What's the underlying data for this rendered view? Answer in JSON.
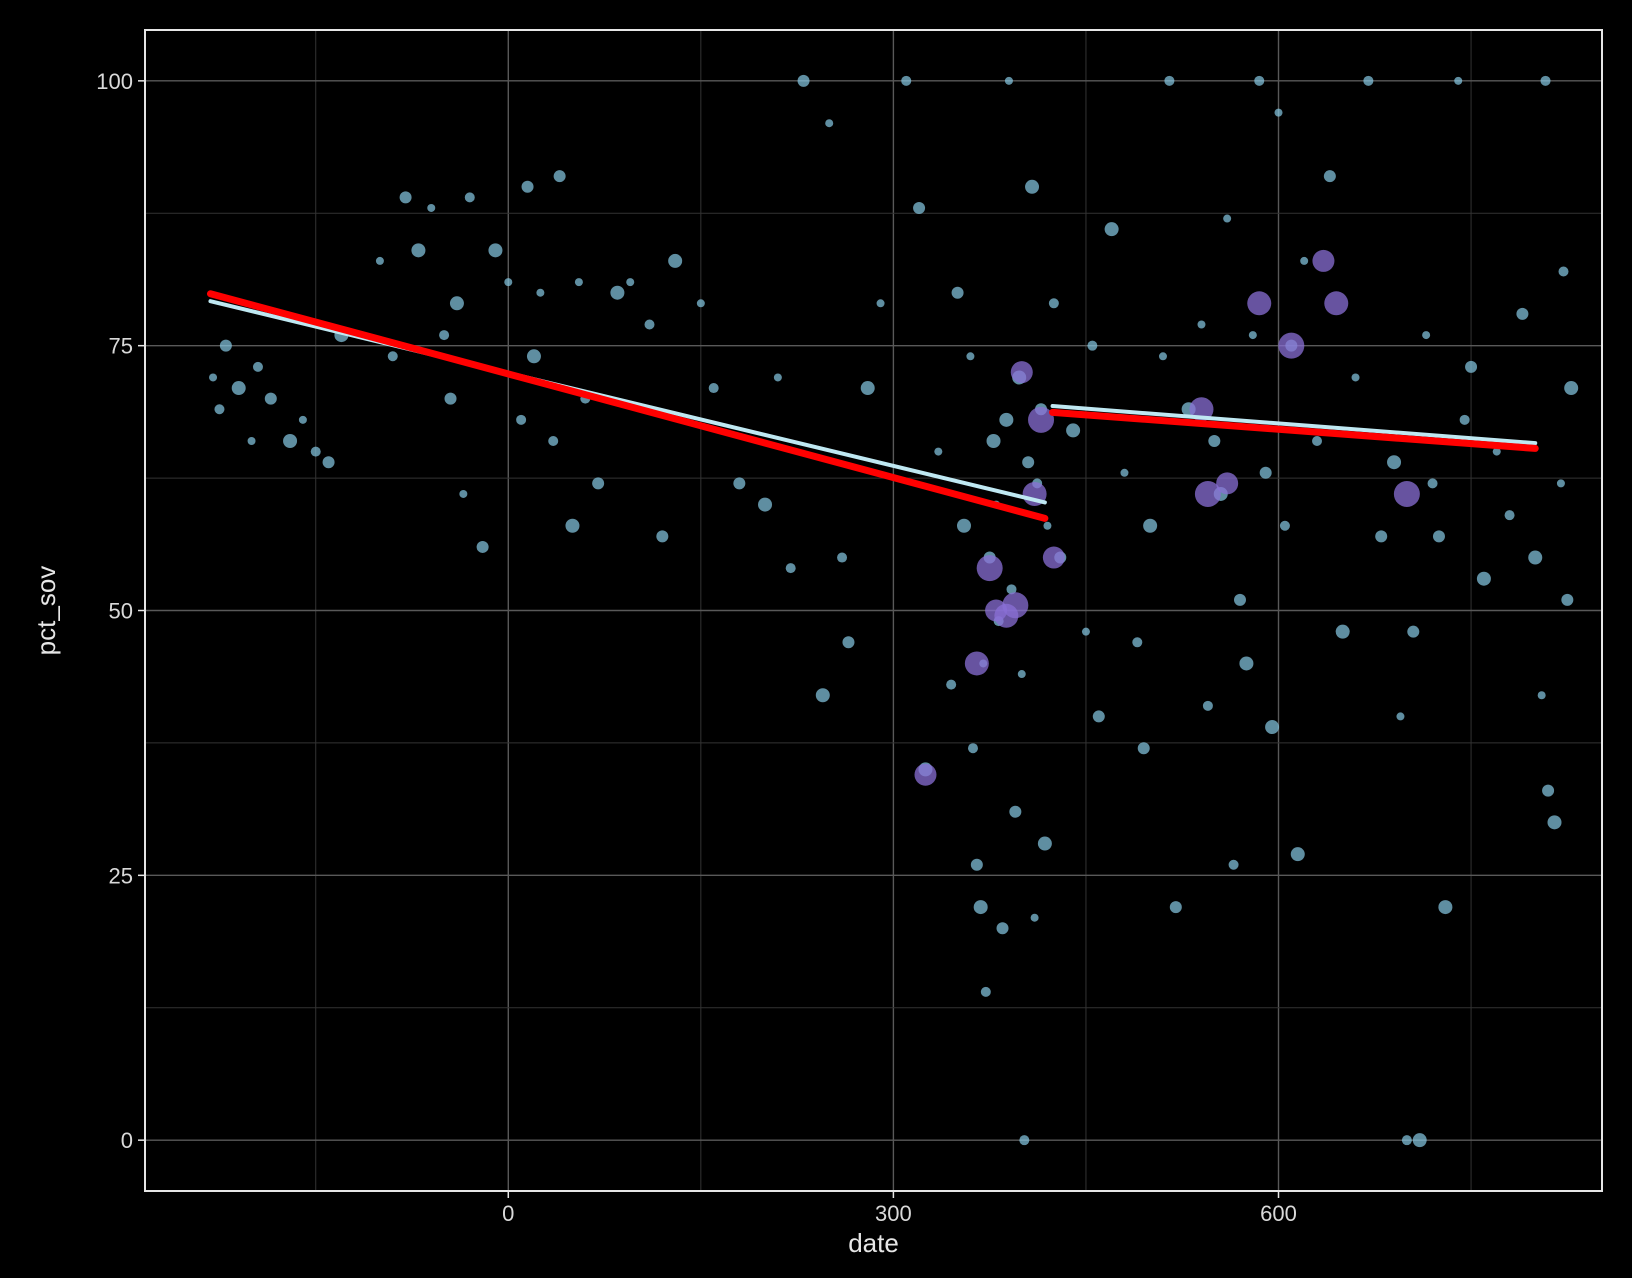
{
  "chart_data": {
    "type": "scatter",
    "title": "",
    "xlabel": "date",
    "ylabel": "pct_sov",
    "xlim": [
      -283,
      852
    ],
    "ylim": [
      -4.8,
      104.8
    ],
    "x_ticks": [
      0,
      300,
      600
    ],
    "x_tick_labels": [
      "0",
      "300",
      "600"
    ],
    "y_ticks": [
      0,
      25,
      50,
      75,
      100
    ],
    "y_tick_labels": [
      "0",
      "25",
      "50",
      "75",
      "100"
    ],
    "grid": true,
    "legend": "none",
    "colors": {
      "background": "#000000",
      "panel_border": "#e6e6e6",
      "grid_major": "#595959",
      "grid_minor": "#333333",
      "point": "#87cbe6",
      "point_large": "#8a6fd6",
      "trend_fit": "#ff0000",
      "trend_alt": "#bfe8f2"
    },
    "points_sample": [
      {
        "x": -230,
        "y": 72
      },
      {
        "x": -225,
        "y": 69
      },
      {
        "x": -220,
        "y": 75
      },
      {
        "x": -210,
        "y": 71
      },
      {
        "x": -200,
        "y": 66
      },
      {
        "x": -195,
        "y": 73
      },
      {
        "x": -185,
        "y": 70
      },
      {
        "x": -170,
        "y": 66
      },
      {
        "x": -160,
        "y": 68
      },
      {
        "x": -150,
        "y": 65
      },
      {
        "x": -140,
        "y": 64
      },
      {
        "x": -130,
        "y": 76
      },
      {
        "x": -100,
        "y": 83
      },
      {
        "x": -90,
        "y": 74
      },
      {
        "x": -80,
        "y": 89
      },
      {
        "x": -70,
        "y": 84
      },
      {
        "x": -60,
        "y": 88
      },
      {
        "x": -50,
        "y": 76
      },
      {
        "x": -45,
        "y": 70
      },
      {
        "x": -40,
        "y": 79
      },
      {
        "x": -35,
        "y": 61
      },
      {
        "x": -30,
        "y": 89
      },
      {
        "x": -20,
        "y": 56
      },
      {
        "x": -10,
        "y": 84
      },
      {
        "x": 0,
        "y": 81
      },
      {
        "x": 10,
        "y": 68
      },
      {
        "x": 15,
        "y": 90
      },
      {
        "x": 20,
        "y": 74
      },
      {
        "x": 25,
        "y": 80
      },
      {
        "x": 35,
        "y": 66
      },
      {
        "x": 40,
        "y": 91
      },
      {
        "x": 50,
        "y": 58
      },
      {
        "x": 55,
        "y": 81
      },
      {
        "x": 60,
        "y": 70
      },
      {
        "x": 70,
        "y": 62
      },
      {
        "x": 85,
        "y": 80
      },
      {
        "x": 95,
        "y": 81
      },
      {
        "x": 110,
        "y": 77
      },
      {
        "x": 120,
        "y": 57
      },
      {
        "x": 130,
        "y": 83
      },
      {
        "x": 150,
        "y": 79
      },
      {
        "x": 160,
        "y": 71
      },
      {
        "x": 180,
        "y": 62
      },
      {
        "x": 200,
        "y": 60
      },
      {
        "x": 210,
        "y": 72
      },
      {
        "x": 220,
        "y": 54
      },
      {
        "x": 230,
        "y": 100
      },
      {
        "x": 245,
        "y": 42
      },
      {
        "x": 250,
        "y": 96
      },
      {
        "x": 260,
        "y": 55
      },
      {
        "x": 265,
        "y": 47
      },
      {
        "x": 280,
        "y": 71
      },
      {
        "x": 290,
        "y": 79
      },
      {
        "x": 310,
        "y": 100
      },
      {
        "x": 320,
        "y": 88
      },
      {
        "x": 325,
        "y": 35
      },
      {
        "x": 335,
        "y": 65
      },
      {
        "x": 345,
        "y": 43
      },
      {
        "x": 350,
        "y": 80
      },
      {
        "x": 355,
        "y": 58
      },
      {
        "x": 360,
        "y": 74
      },
      {
        "x": 362,
        "y": 37
      },
      {
        "x": 365,
        "y": 26
      },
      {
        "x": 368,
        "y": 22
      },
      {
        "x": 370,
        "y": 45
      },
      {
        "x": 372,
        "y": 14
      },
      {
        "x": 375,
        "y": 55
      },
      {
        "x": 378,
        "y": 66
      },
      {
        "x": 380,
        "y": 60
      },
      {
        "x": 382,
        "y": 49
      },
      {
        "x": 385,
        "y": 20
      },
      {
        "x": 388,
        "y": 68
      },
      {
        "x": 390,
        "y": 100
      },
      {
        "x": 392,
        "y": 52
      },
      {
        "x": 395,
        "y": 31
      },
      {
        "x": 398,
        "y": 72
      },
      {
        "x": 400,
        "y": 44
      },
      {
        "x": 402,
        "y": 0
      },
      {
        "x": 405,
        "y": 64
      },
      {
        "x": 408,
        "y": 90
      },
      {
        "x": 410,
        "y": 21
      },
      {
        "x": 412,
        "y": 62
      },
      {
        "x": 415,
        "y": 69
      },
      {
        "x": 418,
        "y": 28
      },
      {
        "x": 420,
        "y": 58
      },
      {
        "x": 425,
        "y": 79
      },
      {
        "x": 430,
        "y": 55
      },
      {
        "x": 440,
        "y": 67
      },
      {
        "x": 450,
        "y": 48
      },
      {
        "x": 455,
        "y": 75
      },
      {
        "x": 460,
        "y": 40
      },
      {
        "x": 470,
        "y": 86
      },
      {
        "x": 480,
        "y": 63
      },
      {
        "x": 490,
        "y": 47
      },
      {
        "x": 495,
        "y": 37
      },
      {
        "x": 500,
        "y": 58
      },
      {
        "x": 510,
        "y": 74
      },
      {
        "x": 515,
        "y": 100
      },
      {
        "x": 520,
        "y": 22
      },
      {
        "x": 530,
        "y": 69
      },
      {
        "x": 540,
        "y": 77
      },
      {
        "x": 545,
        "y": 41
      },
      {
        "x": 550,
        "y": 66
      },
      {
        "x": 555,
        "y": 61
      },
      {
        "x": 560,
        "y": 87
      },
      {
        "x": 565,
        "y": 26
      },
      {
        "x": 570,
        "y": 51
      },
      {
        "x": 575,
        "y": 45
      },
      {
        "x": 580,
        "y": 76
      },
      {
        "x": 585,
        "y": 100
      },
      {
        "x": 590,
        "y": 63
      },
      {
        "x": 595,
        "y": 39
      },
      {
        "x": 600,
        "y": 97
      },
      {
        "x": 605,
        "y": 58
      },
      {
        "x": 610,
        "y": 75
      },
      {
        "x": 615,
        "y": 27
      },
      {
        "x": 620,
        "y": 83
      },
      {
        "x": 630,
        "y": 66
      },
      {
        "x": 640,
        "y": 91
      },
      {
        "x": 650,
        "y": 48
      },
      {
        "x": 660,
        "y": 72
      },
      {
        "x": 670,
        "y": 100
      },
      {
        "x": 680,
        "y": 57
      },
      {
        "x": 690,
        "y": 64
      },
      {
        "x": 695,
        "y": 40
      },
      {
        "x": 700,
        "y": 0
      },
      {
        "x": 705,
        "y": 48
      },
      {
        "x": 710,
        "y": 0
      },
      {
        "x": 715,
        "y": 76
      },
      {
        "x": 720,
        "y": 62
      },
      {
        "x": 725,
        "y": 57
      },
      {
        "x": 730,
        "y": 22
      },
      {
        "x": 740,
        "y": 100
      },
      {
        "x": 745,
        "y": 68
      },
      {
        "x": 750,
        "y": 73
      },
      {
        "x": 760,
        "y": 53
      },
      {
        "x": 770,
        "y": 65
      },
      {
        "x": 780,
        "y": 59
      },
      {
        "x": 790,
        "y": 78
      },
      {
        "x": 800,
        "y": 55
      },
      {
        "x": 805,
        "y": 42
      },
      {
        "x": 808,
        "y": 100
      },
      {
        "x": 810,
        "y": 33
      },
      {
        "x": 815,
        "y": 30
      },
      {
        "x": 820,
        "y": 62
      },
      {
        "x": 822,
        "y": 82
      },
      {
        "x": 825,
        "y": 51
      },
      {
        "x": 828,
        "y": 71
      }
    ],
    "large_points": [
      {
        "x": 325,
        "y": 34.5
      },
      {
        "x": 365,
        "y": 45
      },
      {
        "x": 375,
        "y": 54
      },
      {
        "x": 380,
        "y": 50
      },
      {
        "x": 388,
        "y": 49.5
      },
      {
        "x": 395,
        "y": 50.5
      },
      {
        "x": 400,
        "y": 72.5
      },
      {
        "x": 410,
        "y": 61
      },
      {
        "x": 415,
        "y": 68
      },
      {
        "x": 425,
        "y": 55
      },
      {
        "x": 540,
        "y": 69
      },
      {
        "x": 545,
        "y": 61
      },
      {
        "x": 560,
        "y": 62
      },
      {
        "x": 585,
        "y": 79
      },
      {
        "x": 610,
        "y": 75
      },
      {
        "x": 635,
        "y": 83
      },
      {
        "x": 645,
        "y": 79
      },
      {
        "x": 700,
        "y": 61
      }
    ],
    "trend_lines": [
      {
        "x": [
          -232,
          418
        ],
        "y": [
          79.9,
          58.7
        ]
      },
      {
        "x": [
          424,
          800
        ],
        "y": [
          68.7,
          65.3
        ]
      }
    ],
    "trend_lines_alt": [
      {
        "x": [
          -232,
          418
        ],
        "y": [
          79.2,
          60.2
        ]
      },
      {
        "x": [
          424,
          800
        ],
        "y": [
          69.3,
          65.8
        ]
      }
    ]
  }
}
